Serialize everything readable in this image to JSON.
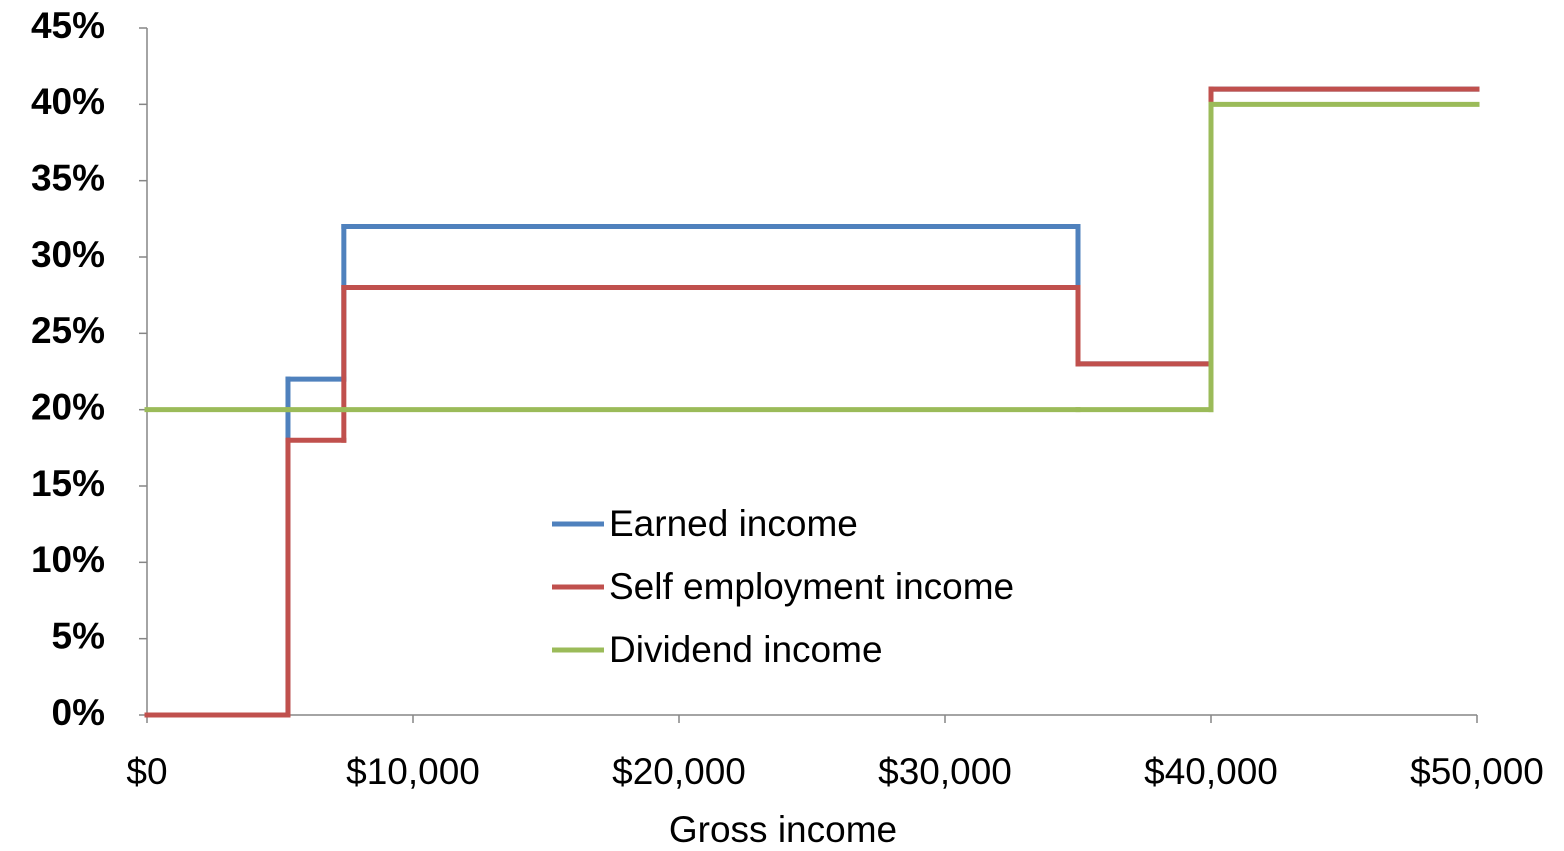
{
  "chart_data": {
    "type": "step",
    "x_title": "Gross income",
    "x": [
      0,
      5300,
      7400,
      35000,
      40000,
      50000
    ],
    "series": [
      {
        "name": "Earned income",
        "color": "#4f81bd",
        "values": [
          0,
          22,
          32,
          23,
          41,
          41
        ]
      },
      {
        "name": "Self employment income",
        "color": "#c0504d",
        "values": [
          0,
          18,
          28,
          23,
          41,
          41
        ]
      },
      {
        "name": "Dividend income",
        "color": "#9bbb59",
        "values": [
          20,
          20,
          20,
          20,
          40,
          40
        ]
      }
    ],
    "xlim": [
      0,
      50000
    ],
    "xticks": [
      {
        "value": 0,
        "label": "$0"
      },
      {
        "value": 10000,
        "label": "$10,000"
      },
      {
        "value": 20000,
        "label": "$20,000"
      },
      {
        "value": 30000,
        "label": "$30,000"
      },
      {
        "value": 40000,
        "label": "$40,000"
      },
      {
        "value": 50000,
        "label": "$50,000"
      }
    ],
    "ylim": [
      0,
      45
    ],
    "yticks": [
      {
        "value": 0,
        "label": "0%"
      },
      {
        "value": 5,
        "label": "5%"
      },
      {
        "value": 10,
        "label": "10%"
      },
      {
        "value": 15,
        "label": "15%"
      },
      {
        "value": 20,
        "label": "20%"
      },
      {
        "value": 25,
        "label": "25%"
      },
      {
        "value": 30,
        "label": "30%"
      },
      {
        "value": 35,
        "label": "35%"
      },
      {
        "value": 40,
        "label": "40%"
      },
      {
        "value": 45,
        "label": "45%"
      }
    ],
    "step": "post",
    "legend": "center",
    "grid": false
  }
}
